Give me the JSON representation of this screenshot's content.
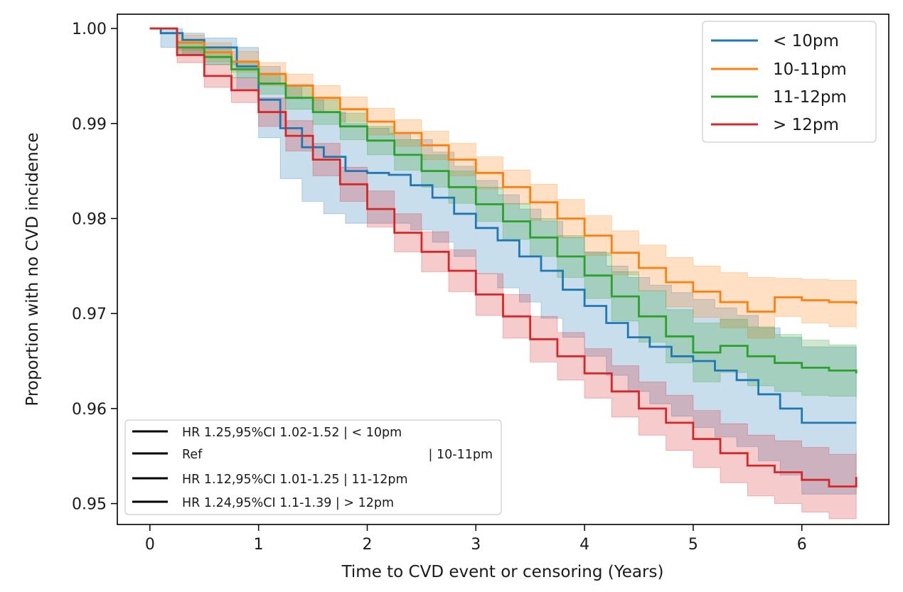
{
  "chart_data": {
    "type": "line",
    "step": true,
    "title": "",
    "xlabel": "Time to CVD event or censoring (Years)",
    "ylabel": "Proportion with no CVD incidence",
    "xlim": [
      -0.3,
      6.8
    ],
    "ylim": [
      0.9478,
      1.0015
    ],
    "x_ticks": [
      0,
      1,
      2,
      3,
      4,
      5,
      6
    ],
    "x_tick_labels": [
      "0",
      "1",
      "2",
      "3",
      "4",
      "5",
      "6"
    ],
    "y_ticks": [
      0.95,
      0.96,
      0.97,
      0.98,
      0.99,
      1.0
    ],
    "y_tick_labels": [
      "0.95",
      "0.96",
      "0.97",
      "0.98",
      "0.99",
      "1.00"
    ],
    "grid": false,
    "legend_position": "top-right",
    "series": [
      {
        "name": "< 10pm",
        "color": "#1f77b4",
        "x": [
          0,
          0.1,
          0.3,
          0.5,
          0.8,
          1.0,
          1.2,
          1.4,
          1.6,
          1.8,
          2.0,
          2.2,
          2.4,
          2.6,
          2.8,
          3.0,
          3.2,
          3.4,
          3.6,
          3.8,
          4.0,
          4.2,
          4.4,
          4.6,
          4.8,
          5.0,
          5.2,
          5.4,
          5.6,
          5.8,
          6.0,
          6.2,
          6.5
        ],
        "y": [
          1.0,
          0.9995,
          0.9988,
          0.998,
          0.996,
          0.9925,
          0.9895,
          0.9875,
          0.9865,
          0.985,
          0.9848,
          0.9846,
          0.9835,
          0.9822,
          0.9805,
          0.979,
          0.9777,
          0.976,
          0.9745,
          0.9725,
          0.9708,
          0.969,
          0.9675,
          0.9665,
          0.9655,
          0.965,
          0.964,
          0.963,
          0.9615,
          0.96,
          0.9585,
          0.9585,
          0.9585
        ],
        "ci_upper": [
          1.0,
          1.0,
          0.9995,
          0.999,
          0.998,
          0.996,
          0.994,
          0.9925,
          0.9912,
          0.99,
          0.9895,
          0.989,
          0.9883,
          0.987,
          0.9855,
          0.984,
          0.9825,
          0.981,
          0.9797,
          0.978,
          0.9765,
          0.975,
          0.9738,
          0.973,
          0.9722,
          0.9715,
          0.9706,
          0.9698,
          0.9685,
          0.9675,
          0.9665,
          0.9665,
          0.966
        ],
        "ci_lower": [
          1.0,
          0.998,
          0.9972,
          0.9962,
          0.9935,
          0.9885,
          0.9842,
          0.9818,
          0.9805,
          0.9795,
          0.9795,
          0.9795,
          0.9788,
          0.9775,
          0.976,
          0.9742,
          0.9727,
          0.9712,
          0.9695,
          0.9675,
          0.9655,
          0.9635,
          0.9618,
          0.9605,
          0.9592,
          0.958,
          0.957,
          0.956,
          0.9545,
          0.953,
          0.951,
          0.951,
          0.951
        ]
      },
      {
        "name": "10-11pm",
        "color": "#ff7f0e",
        "x": [
          0,
          0.25,
          0.5,
          0.75,
          1.0,
          1.25,
          1.5,
          1.75,
          2.0,
          2.25,
          2.5,
          2.75,
          3.0,
          3.25,
          3.5,
          3.75,
          4.0,
          4.25,
          4.5,
          4.75,
          5.0,
          5.25,
          5.5,
          5.75,
          6.0,
          6.25,
          6.5
        ],
        "y": [
          1.0,
          0.9985,
          0.9975,
          0.9965,
          0.9952,
          0.994,
          0.9927,
          0.9915,
          0.9902,
          0.989,
          0.9877,
          0.9862,
          0.9848,
          0.9833,
          0.9817,
          0.98,
          0.9782,
          0.9764,
          0.9748,
          0.9733,
          0.9723,
          0.9712,
          0.9702,
          0.9717,
          0.9714,
          0.9712,
          0.971
        ],
        "ci_upper": [
          1.0,
          0.9993,
          0.9985,
          0.9976,
          0.9964,
          0.9952,
          0.994,
          0.9928,
          0.9916,
          0.9904,
          0.9892,
          0.9879,
          0.9865,
          0.9851,
          0.9836,
          0.982,
          0.9803,
          0.9787,
          0.9772,
          0.9759,
          0.975,
          0.9743,
          0.9738,
          0.9737,
          0.9736,
          0.9735,
          0.9735
        ],
        "ci_lower": [
          1.0,
          0.9977,
          0.9965,
          0.9954,
          0.994,
          0.9928,
          0.9914,
          0.9902,
          0.9888,
          0.9876,
          0.9862,
          0.9845,
          0.9831,
          0.9815,
          0.9798,
          0.978,
          0.9761,
          0.9741,
          0.9724,
          0.9707,
          0.9696,
          0.9685,
          0.9674,
          0.9697,
          0.969,
          0.9686,
          0.9683
        ]
      },
      {
        "name": "11-12pm",
        "color": "#2ca02c",
        "x": [
          0,
          0.25,
          0.5,
          0.75,
          1.0,
          1.25,
          1.5,
          1.75,
          2.0,
          2.25,
          2.5,
          2.75,
          3.0,
          3.25,
          3.5,
          3.75,
          4.0,
          4.25,
          4.5,
          4.75,
          5.0,
          5.25,
          5.5,
          5.75,
          6.0,
          6.25,
          6.5
        ],
        "y": [
          1.0,
          0.998,
          0.997,
          0.9957,
          0.9942,
          0.9927,
          0.9912,
          0.9897,
          0.9882,
          0.9867,
          0.985,
          0.9833,
          0.9815,
          0.9797,
          0.978,
          0.976,
          0.974,
          0.9718,
          0.9697,
          0.9676,
          0.9659,
          0.9666,
          0.9655,
          0.9648,
          0.9643,
          0.964,
          0.9637
        ],
        "ci_upper": [
          1.0,
          0.9987,
          0.9978,
          0.9966,
          0.9953,
          0.9939,
          0.9925,
          0.9911,
          0.9897,
          0.9883,
          0.9867,
          0.985,
          0.9833,
          0.9816,
          0.98,
          0.9782,
          0.9764,
          0.9744,
          0.9724,
          0.9704,
          0.969,
          0.9694,
          0.9686,
          0.9678,
          0.9672,
          0.9667,
          0.9663
        ],
        "ci_lower": [
          1.0,
          0.9973,
          0.9962,
          0.9948,
          0.9931,
          0.9915,
          0.9899,
          0.9883,
          0.9867,
          0.9851,
          0.9833,
          0.9816,
          0.9797,
          0.9778,
          0.976,
          0.9738,
          0.9716,
          0.9692,
          0.967,
          0.9648,
          0.9628,
          0.9638,
          0.9624,
          0.9618,
          0.9614,
          0.9613,
          0.9611
        ]
      },
      {
        "name": "> 12pm",
        "color": "#d62728",
        "x": [
          0,
          0.25,
          0.5,
          0.75,
          1.0,
          1.25,
          1.5,
          1.75,
          2.0,
          2.25,
          2.5,
          2.75,
          3.0,
          3.25,
          3.5,
          3.75,
          4.0,
          4.25,
          4.5,
          4.75,
          5.0,
          5.25,
          5.5,
          5.75,
          6.0,
          6.25,
          6.5
        ],
        "y": [
          1.0,
          0.9972,
          0.995,
          0.9935,
          0.9912,
          0.9887,
          0.9862,
          0.9836,
          0.981,
          0.9785,
          0.9765,
          0.9745,
          0.972,
          0.9697,
          0.9673,
          0.9655,
          0.9637,
          0.9618,
          0.96,
          0.9585,
          0.9568,
          0.9553,
          0.954,
          0.9533,
          0.9525,
          0.9518,
          0.9528
        ],
        "ci_upper": [
          1.0,
          0.998,
          0.9962,
          0.9948,
          0.9927,
          0.9903,
          0.9879,
          0.9854,
          0.9829,
          0.9805,
          0.9786,
          0.9767,
          0.9742,
          0.972,
          0.9697,
          0.968,
          0.9663,
          0.9645,
          0.9628,
          0.9614,
          0.9598,
          0.9584,
          0.9572,
          0.9566,
          0.9559,
          0.9552,
          0.9554
        ],
        "ci_lower": [
          1.0,
          0.9964,
          0.9938,
          0.9922,
          0.9897,
          0.9871,
          0.9845,
          0.9818,
          0.9791,
          0.9765,
          0.9744,
          0.9723,
          0.9698,
          0.9674,
          0.9649,
          0.963,
          0.9611,
          0.9591,
          0.9572,
          0.9556,
          0.9538,
          0.9522,
          0.9508,
          0.95,
          0.9491,
          0.9484,
          0.9502
        ]
      }
    ],
    "annotations": [
      "HR 1.25,95%CI 1.02-1.52 | < 10pm",
      "Ref",
      "| 10-11pm",
      "HR 1.12,95%CI 1.01-1.25 | 11-12pm",
      "HR 1.24,95%CI 1.1-1.39 | > 12pm"
    ]
  }
}
